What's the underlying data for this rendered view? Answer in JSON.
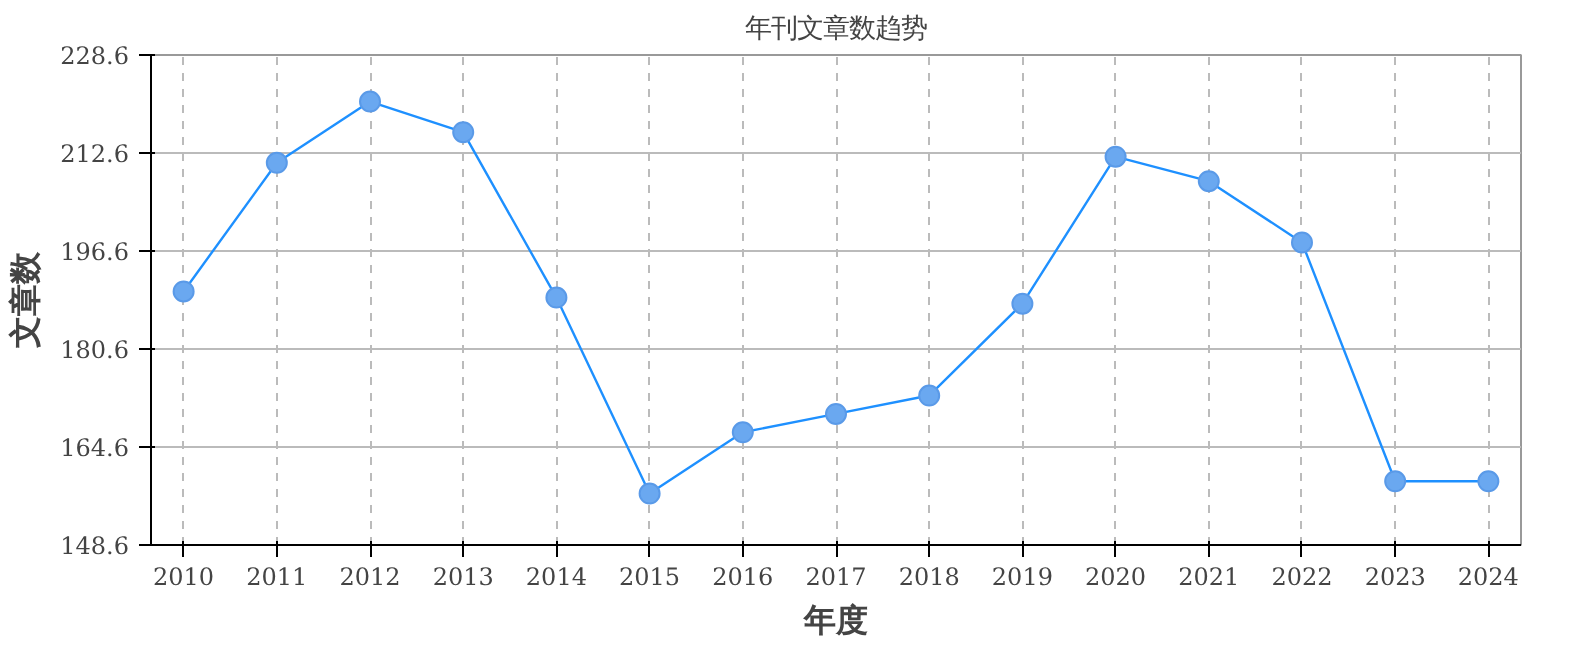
{
  "chart_data": {
    "type": "line",
    "title": "年刊文章数趋势",
    "xlabel": "年度",
    "ylabel": "文章数",
    "categories": [
      "2010",
      "2011",
      "2012",
      "2013",
      "2014",
      "2015",
      "2016",
      "2017",
      "2018",
      "2019",
      "2020",
      "2021",
      "2022",
      "2023",
      "2024"
    ],
    "series": [
      {
        "color": "#1e90ff",
        "values": [
          190,
          211,
          221,
          216,
          189,
          157,
          167,
          170,
          173,
          188,
          212,
          208,
          198,
          159,
          159
        ]
      }
    ],
    "ylim": [
      148.6,
      228.6
    ],
    "yticks": [
      148.6,
      164.6,
      180.6,
      196.6,
      212.6,
      228.6
    ],
    "grid": true,
    "marker": "circle",
    "line_style": "solid"
  }
}
